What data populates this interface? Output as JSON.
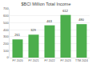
{
  "chart_data": {
    "type": "bar",
    "title": "$BCI Million Total Income",
    "categories": [
      "FY 2020",
      "FY 2021",
      "FY 2022",
      "FY 2023",
      "TTM 2024"
    ],
    "values": [
      261,
      329,
      463,
      612,
      480
    ],
    "color": "#4cae4c",
    "ylim": [
      0,
      700
    ],
    "yticks": [
      0,
      100,
      200,
      300,
      400,
      500,
      600,
      700
    ],
    "grid": true,
    "data_labels": true
  }
}
